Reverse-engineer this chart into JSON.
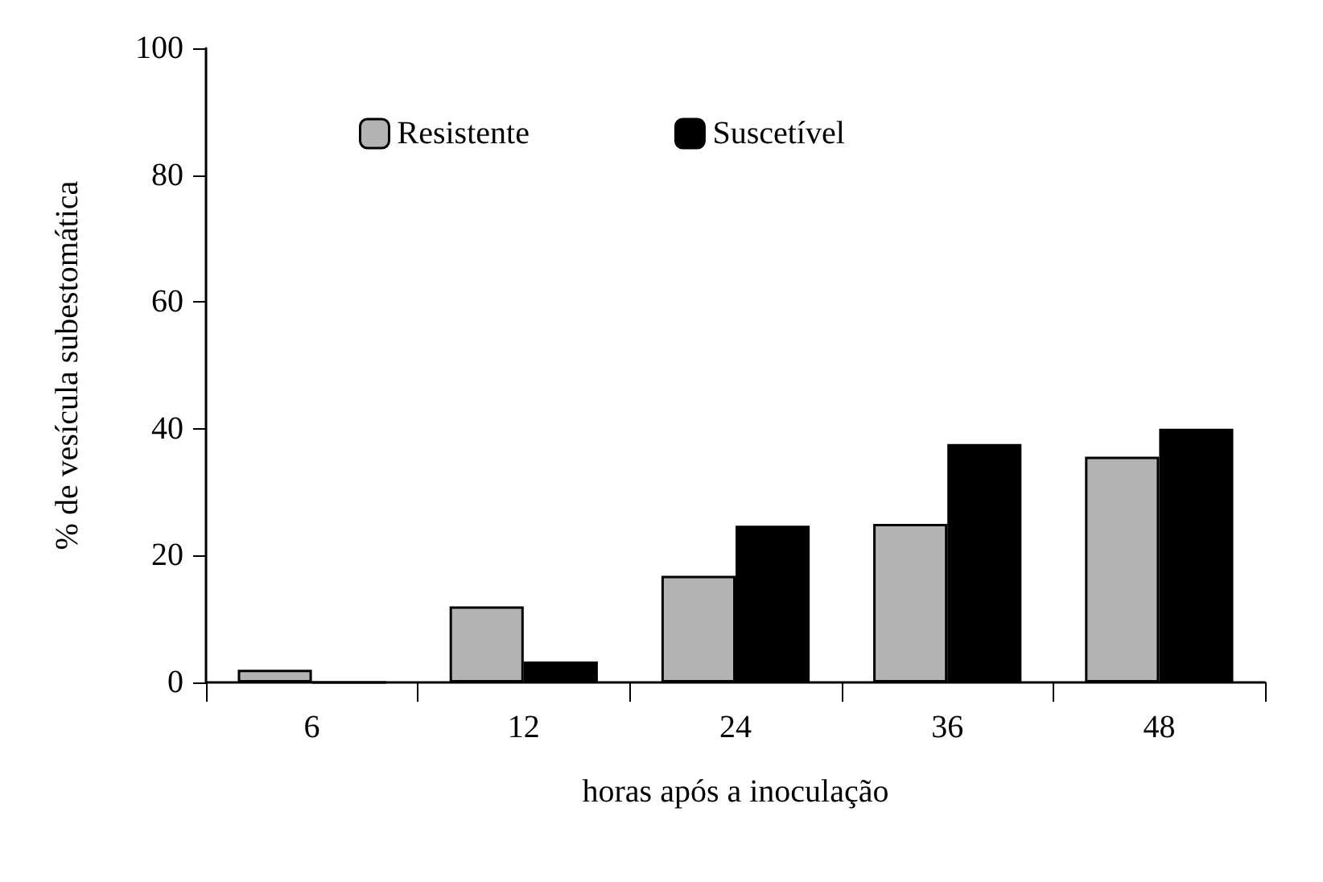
{
  "chart_data": {
    "type": "bar",
    "xlabel": "horas após a inoculação",
    "ylabel": "% de vesícula subestomática",
    "categories": [
      "6",
      "12",
      "24",
      "36",
      "48"
    ],
    "series": [
      {
        "name": "Resistente",
        "color": "#b3b3b3",
        "values": [
          2,
          12,
          16.8,
          25,
          35.6
        ]
      },
      {
        "name": "Suscetível",
        "color": "#000000",
        "values": [
          0,
          3.3,
          24.7,
          37.6,
          40
        ]
      }
    ],
    "ylim": [
      0,
      100
    ],
    "yticks": [
      0,
      20,
      40,
      60,
      80,
      100
    ],
    "grid": false,
    "legend": "top"
  }
}
